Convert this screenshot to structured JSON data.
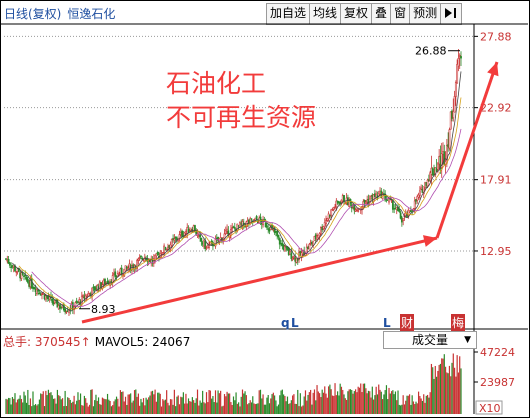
{
  "header": {
    "period": "日线(复权)",
    "stock_name": "恒逸石化",
    "toolbar": [
      "加自选",
      "均线",
      "复权",
      "叠",
      "窗",
      "预测"
    ],
    "toolbar_icon": "play-bar-icon"
  },
  "annotation": {
    "line1": "石油化工",
    "line2": "不可再生资源",
    "color": "#f23b3b"
  },
  "markers": {
    "q": "q",
    "L1": "L",
    "L2": "L",
    "cai": "财",
    "mei": "梅"
  },
  "volume_panel": {
    "label": "总手: 370545",
    "arrow": "↑",
    "ma_label": "MAVOL5: 24067",
    "selector": "成交量",
    "yticks": [
      "47224",
      "23987"
    ],
    "multiplier": "X10"
  },
  "chart_data": {
    "type": "candlestick",
    "title": "",
    "ylim": [
      7.8,
      28.6
    ],
    "y_ticks": [
      27.88,
      22.92,
      17.91,
      12.95
    ],
    "y_tick_labels": [
      "27.88",
      "22.92",
      "17.91",
      "12.95"
    ],
    "grid": true,
    "price_path": [
      [
        0,
        12.4
      ],
      [
        6,
        11.8
      ],
      [
        12,
        11.2
      ],
      [
        20,
        10.6
      ],
      [
        28,
        10.0
      ],
      [
        36,
        9.4
      ],
      [
        44,
        9.0
      ],
      [
        48,
        8.93
      ],
      [
        54,
        9.2
      ],
      [
        62,
        9.8
      ],
      [
        70,
        10.4
      ],
      [
        80,
        10.9
      ],
      [
        90,
        11.5
      ],
      [
        100,
        12.0
      ],
      [
        108,
        12.6
      ],
      [
        114,
        12.2
      ],
      [
        122,
        13.0
      ],
      [
        130,
        13.6
      ],
      [
        138,
        14.2
      ],
      [
        146,
        14.6
      ],
      [
        150,
        13.8
      ],
      [
        156,
        13.2
      ],
      [
        164,
        13.6
      ],
      [
        172,
        14.2
      ],
      [
        180,
        14.6
      ],
      [
        188,
        14.9
      ],
      [
        196,
        15.1
      ],
      [
        204,
        14.7
      ],
      [
        210,
        14.1
      ],
      [
        214,
        13.4
      ],
      [
        220,
        12.8
      ],
      [
        226,
        12.4
      ],
      [
        232,
        12.9
      ],
      [
        238,
        13.5
      ],
      [
        244,
        14.3
      ],
      [
        250,
        15.3
      ],
      [
        256,
        16.1
      ],
      [
        262,
        16.6
      ],
      [
        268,
        16.2
      ],
      [
        274,
        15.9
      ],
      [
        280,
        16.4
      ],
      [
        286,
        16.7
      ],
      [
        292,
        16.9
      ],
      [
        298,
        16.4
      ],
      [
        304,
        15.8
      ],
      [
        308,
        15.1
      ],
      [
        314,
        15.6
      ],
      [
        320,
        16.6
      ],
      [
        326,
        17.6
      ],
      [
        332,
        18.6
      ],
      [
        338,
        19.2
      ],
      [
        342,
        19.8
      ],
      [
        346,
        22.0
      ],
      [
        350,
        24.6
      ],
      [
        353,
        26.88
      ]
    ],
    "annotations": {
      "high_label": "26.88",
      "low_label": "8.93"
    },
    "volume": {
      "ylim": [
        0,
        60000
      ],
      "ticks": [
        47224,
        23987
      ]
    }
  }
}
